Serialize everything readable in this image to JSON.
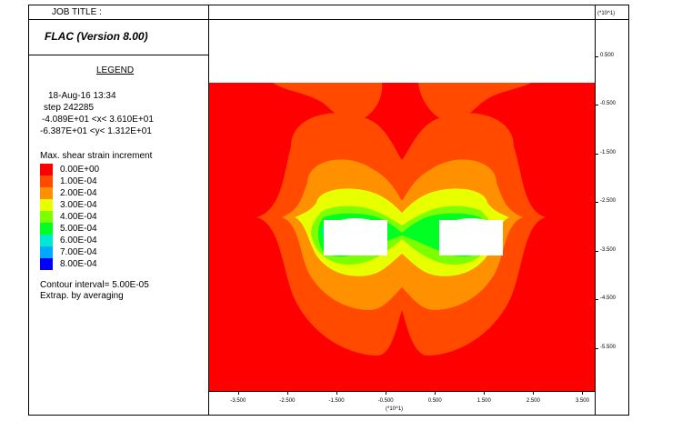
{
  "header": {
    "job_title": "JOB TITLE :",
    "program": "FLAC (Version 8.00)",
    "y_scale": "(*10^1)"
  },
  "legend": {
    "heading": "LEGEND",
    "date_time": "18-Aug-16  13:34",
    "step": "step   242285",
    "x_range": "-4.089E+01 <x<  3.610E+01",
    "y_range": "-6.387E+01 <y<  1.312E+01",
    "contour_title": "Max. shear strain increment",
    "levels": [
      {
        "label": "0.00E+00",
        "color": "#ff0000"
      },
      {
        "label": "1.00E-04",
        "color": "#ff4a00"
      },
      {
        "label": "2.00E-04",
        "color": "#ff9000"
      },
      {
        "label": "3.00E-04",
        "color": "#e8ff00"
      },
      {
        "label": "4.00E-04",
        "color": "#7cff00"
      },
      {
        "label": "5.00E-04",
        "color": "#00ff22"
      },
      {
        "label": "6.00E-04",
        "color": "#00e8d0"
      },
      {
        "label": "7.00E-04",
        "color": "#00a8ff"
      },
      {
        "label": "8.00E-04",
        "color": "#0000ff"
      }
    ],
    "contour_interval": "Contour interval=  5.00E-05",
    "extrap": "Extrap. by averaging"
  },
  "chart_data": {
    "type": "heatmap",
    "title": "Max. shear strain increment",
    "x_axis_label": "(*10^1)",
    "y_axis_label": "(*10^1)",
    "x_ticks": [
      "-3.500",
      "-2.500",
      "-1.500",
      "-0.500",
      "0.500",
      "1.500",
      "2.500",
      "3.500"
    ],
    "y_ticks": [
      "0.500",
      "-0.500",
      "-1.500",
      "-2.500",
      "-3.500",
      "-4.500",
      "-5.500"
    ],
    "xlim": [
      -4.089,
      3.61
    ],
    "ylim": [
      -6.387,
      1.312
    ],
    "contour_levels": [
      0.0,
      0.0001,
      0.0002,
      0.0003,
      0.0004,
      0.0005,
      0.0006,
      0.0007,
      0.0008
    ],
    "contour_interval": 5e-05,
    "ground_surface_y": -0.25,
    "openings": [
      {
        "name": "left tunnel",
        "x_range": [
          -1.8,
          -0.5
        ],
        "y_range": [
          -3.85,
          -2.95
        ]
      },
      {
        "name": "right tunnel",
        "x_range": [
          0.5,
          1.8
        ],
        "y_range": [
          -3.85,
          -2.95
        ]
      }
    ]
  }
}
